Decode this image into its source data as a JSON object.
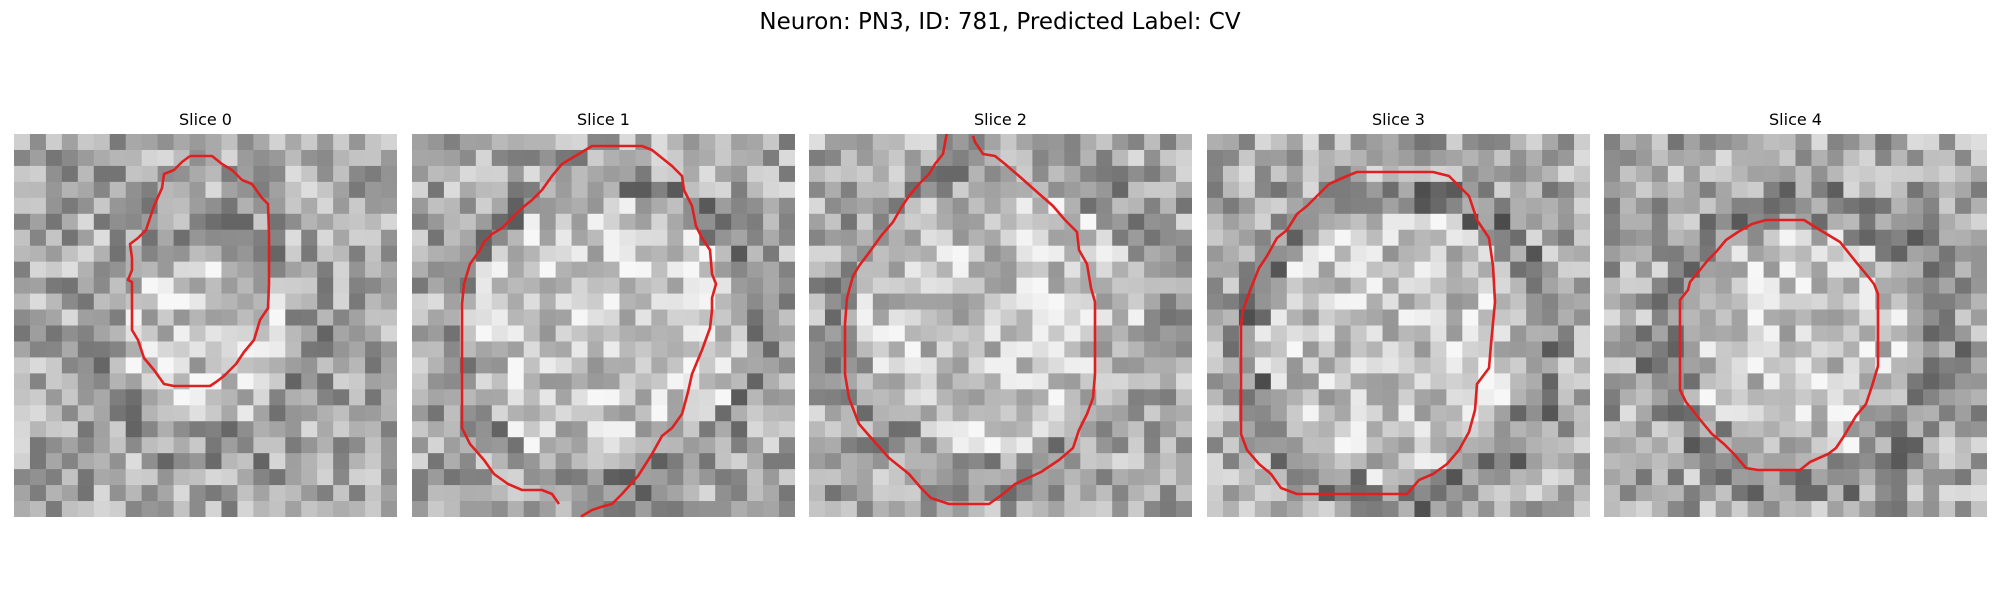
{
  "figure": {
    "title": "Neuron: PN3, ID: 781, Predicted Label: CV"
  },
  "panels": [
    {
      "title": "Slice 0",
      "contour_color": "#e02020",
      "background": "grayscale-noise"
    },
    {
      "title": "Slice 1",
      "contour_color": "#e02020",
      "background": "grayscale-noise"
    },
    {
      "title": "Slice 2",
      "contour_color": "#e02020",
      "background": "grayscale-noise"
    },
    {
      "title": "Slice 3",
      "contour_color": "#e02020",
      "background": "grayscale-noise"
    },
    {
      "title": "Slice 4",
      "contour_color": "#e02020",
      "background": "grayscale-noise"
    }
  ]
}
